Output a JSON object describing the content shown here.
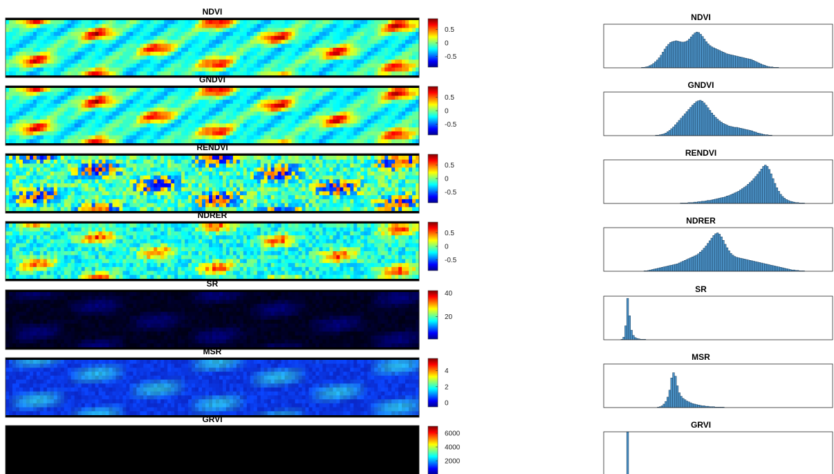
{
  "figure": {
    "colors": {
      "bar_fill": "#4a90c4",
      "bar_edge": "#1c3f5e",
      "frame": "#262626"
    },
    "colormap": "jet",
    "panels": [
      {
        "title": "NDVI",
        "texture": "high",
        "colorbar": {
          "range": [
            -0.9,
            0.9
          ],
          "ticks": [
            0.5,
            0,
            -0.5
          ]
        }
      },
      {
        "title": "GNDVI",
        "texture": "high",
        "colorbar": {
          "range": [
            -0.9,
            0.9
          ],
          "ticks": [
            0.5,
            0,
            -0.5
          ]
        }
      },
      {
        "title": "RENDVI",
        "texture": "noise",
        "colorbar": {
          "range": [
            -0.9,
            0.9
          ],
          "ticks": [
            0.5,
            0,
            -0.5
          ]
        }
      },
      {
        "title": "NDRER",
        "texture": "mixed",
        "colorbar": {
          "range": [
            -0.9,
            0.9
          ],
          "ticks": [
            0.5,
            0,
            -0.5
          ]
        }
      },
      {
        "title": "SR",
        "texture": "dark",
        "colorbar": {
          "range": [
            1,
            42
          ],
          "ticks": [
            40,
            20
          ]
        }
      },
      {
        "title": "MSR",
        "texture": "blue",
        "colorbar": {
          "range": [
            -0.5,
            5.5
          ],
          "ticks": [
            4,
            2,
            0
          ]
        }
      },
      {
        "title": "GRVI",
        "texture": "black",
        "colorbar": {
          "range": [
            0,
            7000
          ],
          "ticks": [
            6000,
            4000,
            2000
          ]
        }
      }
    ]
  },
  "chart_data": [
    {
      "type": "bar",
      "title": "NDVI",
      "values": [
        0,
        0,
        0,
        0,
        0,
        0,
        0,
        0,
        0,
        0,
        0,
        0,
        0,
        0,
        0,
        0,
        0,
        0,
        0,
        0,
        1,
        1,
        2,
        3,
        5,
        7,
        10,
        14,
        18,
        23,
        29,
        36,
        43,
        49,
        54,
        58,
        60,
        61,
        62,
        61,
        60,
        59,
        59,
        60,
        62,
        66,
        71,
        76,
        80,
        82,
        81,
        77,
        72,
        66,
        60,
        55,
        51,
        48,
        46,
        44,
        42,
        40,
        38,
        36,
        34,
        32,
        31,
        30,
        29,
        28,
        27,
        26,
        25,
        24,
        23,
        22,
        21,
        20,
        19,
        17,
        15,
        13,
        11,
        9,
        7,
        6,
        4,
        3,
        2,
        2,
        1,
        1,
        1,
        0,
        0,
        0,
        0,
        0,
        0,
        0,
        0,
        0,
        0,
        0,
        0,
        0,
        0,
        0,
        0,
        0,
        0,
        0,
        0,
        0,
        0,
        0,
        0,
        0,
        0,
        0,
        0,
        0
      ]
    },
    {
      "type": "bar",
      "title": "GNDVI",
      "values": [
        0,
        0,
        0,
        0,
        0,
        0,
        0,
        0,
        0,
        0,
        0,
        0,
        0,
        0,
        0,
        0,
        0,
        0,
        0,
        0,
        0,
        0,
        0,
        0,
        0,
        0,
        0,
        1,
        1,
        2,
        3,
        4,
        6,
        9,
        12,
        16,
        20,
        25,
        30,
        35,
        40,
        45,
        50,
        55,
        60,
        65,
        70,
        74,
        78,
        80,
        81,
        79,
        75,
        70,
        64,
        58,
        52,
        47,
        42,
        38,
        34,
        31,
        28,
        26,
        24,
        22,
        21,
        20,
        19,
        19,
        18,
        17,
        16,
        15,
        14,
        13,
        12,
        11,
        9,
        8,
        6,
        5,
        4,
        3,
        2,
        2,
        1,
        1,
        0,
        0,
        0,
        0,
        0,
        0,
        0,
        0,
        0,
        0,
        0,
        0,
        0,
        0,
        0,
        0,
        0,
        0,
        0,
        0,
        0,
        0,
        0,
        0,
        0,
        0,
        0,
        0,
        0,
        0,
        0,
        0
      ]
    },
    {
      "type": "bar",
      "title": "RENDVI",
      "values": [
        0,
        0,
        0,
        0,
        0,
        0,
        0,
        0,
        0,
        0,
        0,
        0,
        0,
        0,
        0,
        0,
        0,
        0,
        0,
        0,
        0,
        0,
        0,
        0,
        0,
        0,
        0,
        0,
        0,
        0,
        0,
        0,
        0,
        0,
        0,
        0,
        0,
        0,
        0,
        0,
        1,
        1,
        1,
        1,
        2,
        2,
        2,
        3,
        3,
        4,
        4,
        5,
        5,
        6,
        7,
        7,
        8,
        9,
        10,
        11,
        12,
        13,
        14,
        15,
        17,
        18,
        20,
        22,
        24,
        26,
        28,
        31,
        34,
        37,
        40,
        44,
        48,
        52,
        57,
        62,
        67,
        73,
        79,
        85,
        88,
        85,
        78,
        68,
        57,
        46,
        36,
        28,
        21,
        16,
        12,
        9,
        7,
        5,
        4,
        3,
        2,
        2,
        1,
        1,
        1,
        0,
        0,
        0,
        0,
        0,
        0,
        0,
        0,
        0,
        0,
        0,
        0,
        0,
        0,
        0
      ]
    },
    {
      "type": "bar",
      "title": "NDRER",
      "values": [
        0,
        0,
        0,
        0,
        0,
        0,
        0,
        0,
        0,
        0,
        0,
        0,
        0,
        0,
        0,
        0,
        0,
        0,
        0,
        0,
        0,
        1,
        1,
        2,
        3,
        4,
        5,
        6,
        7,
        8,
        9,
        10,
        11,
        12,
        13,
        14,
        15,
        16,
        17,
        19,
        21,
        23,
        25,
        27,
        29,
        31,
        33,
        35,
        37,
        40,
        44,
        48,
        53,
        58,
        64,
        70,
        76,
        82,
        86,
        88,
        85,
        79,
        71,
        62,
        54,
        47,
        41,
        37,
        34,
        32,
        31,
        30,
        29,
        28,
        27,
        26,
        25,
        24,
        23,
        22,
        21,
        20,
        19,
        18,
        17,
        16,
        15,
        14,
        13,
        12,
        11,
        10,
        9,
        8,
        7,
        6,
        5,
        4,
        3,
        3,
        2,
        2,
        1,
        1,
        1,
        0,
        0,
        0,
        0,
        0,
        0,
        0,
        0,
        0,
        0,
        0,
        0,
        0,
        0,
        0
      ]
    },
    {
      "type": "bar",
      "title": "SR",
      "values": [
        0,
        0,
        0,
        0,
        0,
        0,
        0,
        0,
        0,
        1,
        6,
        32,
        95,
        55,
        22,
        10,
        5,
        3,
        2,
        1,
        1,
        1,
        0,
        0,
        0,
        0,
        0,
        0,
        0,
        0,
        0,
        0,
        0,
        0,
        0,
        0,
        0,
        0,
        0,
        0,
        0,
        0,
        0,
        0,
        0,
        0,
        0,
        0,
        0,
        0,
        0,
        0,
        0,
        0,
        0,
        0,
        0,
        0,
        0,
        0,
        0,
        0,
        0,
        0,
        0,
        0,
        0,
        0,
        0,
        0,
        0,
        0,
        0,
        0,
        0,
        0,
        0,
        0,
        0,
        0,
        0,
        0,
        0,
        0,
        0,
        0,
        0,
        0,
        0,
        0,
        0,
        0,
        0,
        0,
        0,
        0,
        0,
        0,
        0,
        0,
        0,
        0,
        0,
        0,
        0,
        0,
        0,
        0,
        0,
        0,
        0,
        0,
        0,
        0,
        0,
        0,
        0,
        0,
        0,
        0
      ]
    },
    {
      "type": "bar",
      "title": "MSR",
      "values": [
        0,
        0,
        0,
        0,
        0,
        0,
        0,
        0,
        0,
        0,
        0,
        0,
        0,
        0,
        0,
        0,
        0,
        0,
        0,
        0,
        0,
        0,
        0,
        0,
        0,
        0,
        0,
        0,
        1,
        2,
        4,
        8,
        14,
        24,
        40,
        68,
        80,
        72,
        50,
        34,
        26,
        21,
        18,
        15,
        13,
        11,
        9,
        8,
        7,
        6,
        5,
        4,
        4,
        3,
        3,
        2,
        2,
        2,
        1,
        1,
        1,
        1,
        1,
        0,
        0,
        0,
        0,
        0,
        0,
        0,
        0,
        0,
        0,
        0,
        0,
        0,
        0,
        0,
        0,
        0,
        0,
        0,
        0,
        0,
        0,
        0,
        0,
        0,
        0,
        0,
        0,
        0,
        0,
        0,
        0,
        0,
        0,
        0,
        0,
        0,
        0,
        0,
        0,
        0,
        0,
        0,
        0,
        0,
        0,
        0,
        0,
        0,
        0,
        0,
        0,
        0,
        0,
        0,
        0,
        0
      ]
    },
    {
      "type": "bar",
      "title": "GRVI",
      "values": [
        0,
        0,
        0,
        0,
        0,
        0,
        0,
        0,
        0,
        0,
        0,
        0,
        110,
        0,
        0,
        0,
        0,
        0,
        0,
        0,
        0,
        0,
        0,
        0,
        0,
        0,
        0,
        0,
        0,
        0,
        0,
        0,
        0,
        0,
        0,
        0,
        0,
        0,
        0,
        0,
        0,
        0,
        0,
        0,
        0,
        0,
        0,
        0,
        0,
        0,
        0,
        0,
        0,
        0,
        0,
        0,
        0,
        0,
        0,
        0,
        0,
        0,
        0,
        0,
        0,
        0,
        0,
        0,
        0,
        0,
        0,
        0,
        0,
        0,
        0,
        0,
        0,
        0,
        0,
        0,
        0,
        0,
        0,
        0,
        0,
        0,
        0,
        0,
        0,
        0,
        0,
        0,
        0,
        0,
        0,
        0,
        0,
        0,
        0,
        0,
        0,
        0,
        0,
        0,
        0,
        0,
        0,
        0,
        0,
        0,
        0,
        0,
        0,
        0,
        0,
        0,
        0,
        0,
        0,
        0
      ]
    }
  ]
}
